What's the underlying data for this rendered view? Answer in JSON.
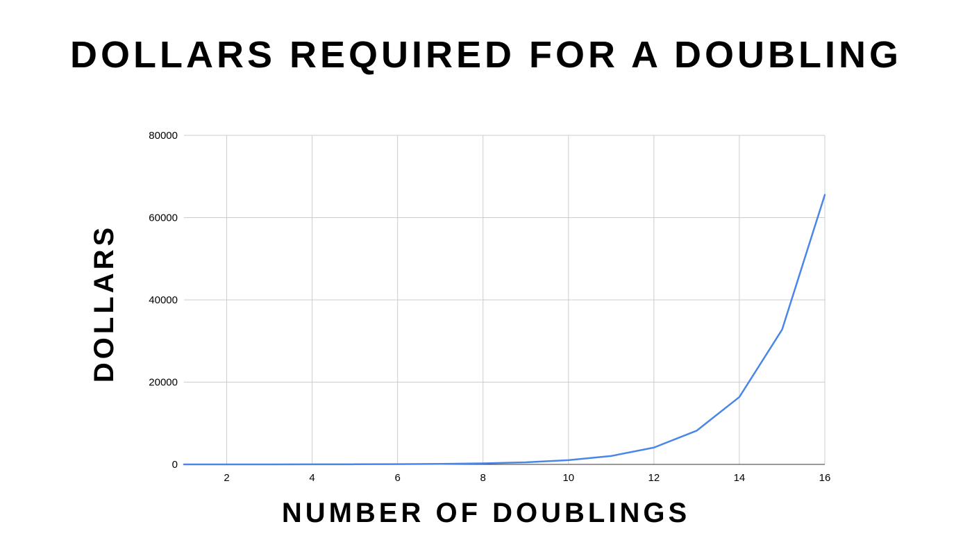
{
  "chart_data": {
    "type": "line",
    "title": "DOLLARS REQUIRED FOR A DOUBLING",
    "xlabel": "NUMBER OF DOUBLINGS",
    "ylabel": "DOLLARS",
    "xlim": [
      1,
      16
    ],
    "ylim": [
      0,
      80000
    ],
    "x_ticks": [
      2,
      4,
      6,
      8,
      10,
      12,
      14,
      16
    ],
    "y_ticks": [
      0,
      20000,
      40000,
      60000,
      80000
    ],
    "grid": true,
    "legend": "none",
    "series": [
      {
        "color": "#4a86e8",
        "x": [
          1,
          2,
          3,
          4,
          5,
          6,
          7,
          8,
          9,
          10,
          11,
          12,
          13,
          14,
          15,
          16
        ],
        "values": [
          2,
          4,
          8,
          16,
          32,
          64,
          128,
          256,
          512,
          1024,
          2048,
          4096,
          8192,
          16384,
          32768,
          65536
        ]
      }
    ]
  }
}
